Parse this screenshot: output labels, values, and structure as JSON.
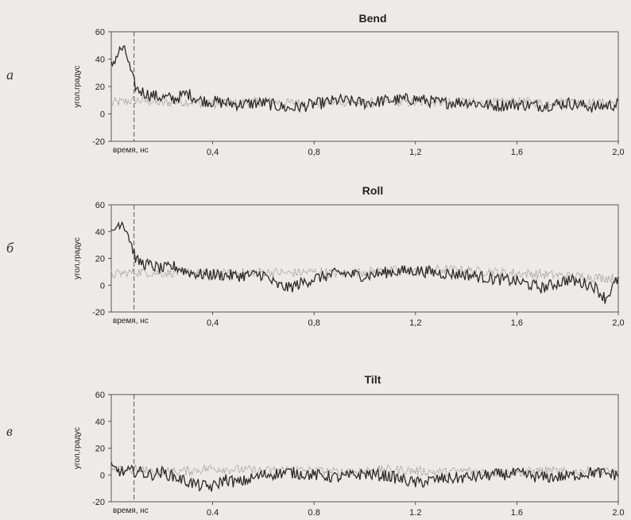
{
  "figure": {
    "colors": {
      "background": "#ecebe7",
      "primary_series": "#2b2b2b",
      "secondary_series": "#9a9a9a",
      "axes": "#333333"
    }
  },
  "chart_data": [
    {
      "type": "line",
      "panel_label": "а",
      "title": "Bend",
      "ylabel": "угол,градус",
      "xlabel": "время, нс",
      "xlim": [
        0,
        2.0
      ],
      "ylim": [
        -20,
        60
      ],
      "yticks": [
        "-20",
        "0",
        "20",
        "40",
        "60"
      ],
      "xticks": [
        "0,4",
        "0,8",
        "1,2",
        "1,6",
        "2,0"
      ],
      "xtick_values": [
        0.4,
        0.8,
        1.2,
        1.6,
        2.0
      ],
      "marker_x": 0.09,
      "series": [
        {
          "x": [
            0,
            0.02,
            0.04,
            0.06,
            0.08,
            0.1,
            0.15,
            0.2,
            0.25,
            0.3,
            0.35,
            0.4,
            0.5,
            0.6,
            0.7,
            0.8,
            0.9,
            1.0,
            1.1,
            1.2,
            1.3,
            1.4,
            1.5,
            1.6,
            1.7,
            1.8,
            1.9,
            2.0
          ],
          "values": [
            35,
            42,
            48,
            44,
            28,
            18,
            14,
            12,
            11,
            15,
            10,
            9,
            7,
            8,
            4,
            7,
            10,
            8,
            10,
            11,
            8,
            9,
            6,
            7,
            6,
            8,
            5,
            7
          ]
        },
        {
          "x": [
            0,
            0.1,
            0.2,
            0.3,
            0.4,
            0.5,
            0.6,
            0.7,
            0.8,
            0.9,
            1.0,
            1.1,
            1.2,
            1.3,
            1.4,
            1.5,
            1.6,
            1.7,
            1.8,
            1.9,
            2.0
          ],
          "values": [
            8,
            10,
            8,
            9,
            7,
            8,
            9,
            8,
            8,
            9,
            8,
            9,
            8,
            9,
            8,
            8,
            9,
            8,
            9,
            8,
            8
          ]
        }
      ]
    },
    {
      "type": "line",
      "panel_label": "б",
      "title": "Roll",
      "ylabel": "угол,градус",
      "xlabel": "время, нс",
      "xlim": [
        0,
        2.0
      ],
      "ylim": [
        -20,
        60
      ],
      "yticks": [
        "-20",
        "0",
        "20",
        "40",
        "60"
      ],
      "xticks": [
        "0,4",
        "0,8",
        "1,2",
        "1,6",
        "2,0"
      ],
      "xtick_values": [
        0.4,
        0.8,
        1.2,
        1.6,
        2.0
      ],
      "marker_x": 0.09,
      "series": [
        {
          "x": [
            0,
            0.02,
            0.04,
            0.06,
            0.08,
            0.1,
            0.15,
            0.2,
            0.25,
            0.3,
            0.35,
            0.4,
            0.5,
            0.6,
            0.65,
            0.7,
            0.8,
            0.9,
            1.0,
            1.1,
            1.2,
            1.3,
            1.4,
            1.5,
            1.6,
            1.7,
            1.8,
            1.9,
            1.95,
            2.0
          ],
          "values": [
            38,
            44,
            48,
            42,
            30,
            18,
            15,
            12,
            14,
            10,
            8,
            8,
            7,
            8,
            0,
            -2,
            5,
            9,
            7,
            10,
            11,
            9,
            8,
            5,
            3,
            -2,
            4,
            0,
            -10,
            5
          ]
        },
        {
          "x": [
            0,
            0.1,
            0.2,
            0.3,
            0.4,
            0.5,
            0.6,
            0.7,
            0.8,
            0.9,
            1.0,
            1.1,
            1.2,
            1.3,
            1.4,
            1.5,
            1.6,
            1.7,
            1.8,
            1.9,
            2.0
          ],
          "values": [
            8,
            10,
            9,
            10,
            8,
            9,
            10,
            9,
            10,
            9,
            10,
            11,
            10,
            12,
            11,
            10,
            9,
            8,
            7,
            6,
            5
          ]
        }
      ]
    },
    {
      "type": "line",
      "panel_label": "в",
      "title": "Tilt",
      "ylabel": "угол,градус",
      "xlabel": "время, нс",
      "xlim": [
        0,
        2.0
      ],
      "ylim": [
        -20,
        60
      ],
      "yticks": [
        "-20",
        "0",
        "20",
        "40",
        "60"
      ],
      "xticks": [
        "0.4",
        "0.8",
        "1.2",
        "1.6",
        "2.0"
      ],
      "xtick_values": [
        0.4,
        0.8,
        1.2,
        1.6,
        2.0
      ],
      "marker_x": 0.09,
      "series": [
        {
          "x": [
            0,
            0.05,
            0.1,
            0.15,
            0.2,
            0.3,
            0.35,
            0.4,
            0.45,
            0.5,
            0.6,
            0.7,
            0.8,
            0.9,
            1.0,
            1.1,
            1.2,
            1.3,
            1.4,
            1.5,
            1.6,
            1.7,
            1.8,
            1.9,
            2.0
          ],
          "values": [
            5,
            2,
            3,
            0,
            2,
            -5,
            -8,
            -9,
            -3,
            -6,
            0,
            2,
            0,
            -2,
            1,
            -1,
            -6,
            -3,
            -2,
            0,
            1,
            -2,
            -1,
            2,
            0
          ]
        },
        {
          "x": [
            0,
            0.1,
            0.2,
            0.3,
            0.4,
            0.5,
            0.6,
            0.7,
            0.8,
            0.9,
            1.0,
            1.1,
            1.2,
            1.3,
            1.4,
            1.5,
            1.6,
            1.7,
            1.8,
            1.9,
            2.0
          ],
          "values": [
            3,
            4,
            2,
            3,
            5,
            4,
            3,
            4,
            3,
            2,
            3,
            4,
            3,
            2,
            3,
            2,
            2,
            3,
            2,
            3,
            2
          ]
        }
      ]
    }
  ]
}
